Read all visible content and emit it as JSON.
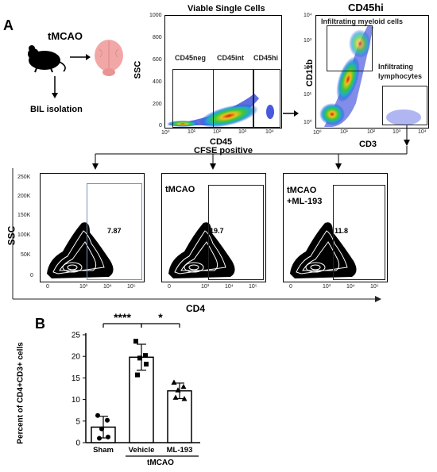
{
  "panelA": {
    "letter": "A",
    "mouse_label": "tMCAO",
    "isolation_label": "BIL isolation",
    "viable": {
      "title": "Viable Single Cells",
      "ylabel": "SSC",
      "xlabel": "CD45",
      "yticks": [
        "1000",
        "800",
        "600",
        "400",
        "200",
        "0"
      ],
      "xticks": [
        "10⁰",
        "10¹",
        "10²",
        "10³",
        "10⁴"
      ],
      "gates": [
        "CD45neg",
        "CD45int",
        "CD45hi"
      ]
    },
    "cd45hi": {
      "title": "CD45hi",
      "ylabel": "CD11b",
      "xlabel": "CD3",
      "yticks": [
        "10⁴",
        "10³",
        "10²",
        "10¹",
        "10⁰"
      ],
      "xticks": [
        "10⁰",
        "10¹",
        "10²",
        "10³",
        "10⁴"
      ],
      "gate_myeloid": "Infiltrating myeloid cells",
      "gate_lymph": "Infiltrating lymphocytes"
    },
    "cfse_label": "CFSE positive",
    "ssc_label": "SSC",
    "cd4_label": "CD4",
    "cd4_plots": {
      "yticks": [
        "250K",
        "200K",
        "150K",
        "100K",
        "50K",
        "0"
      ],
      "xticks": [
        "0",
        "10³",
        "10⁴",
        "10⁵"
      ],
      "panels": [
        {
          "label": "",
          "value": "7.87"
        },
        {
          "label": "tMCAO",
          "value": "19.7"
        },
        {
          "label": "tMCAO\n+ML-193",
          "value": "11.8"
        }
      ]
    }
  },
  "chart_data": {
    "type": "bar",
    "title": "",
    "ylabel": "Percent of CD4+CD3+ cells",
    "xlabel": "tMCAO",
    "ylim": [
      0,
      25
    ],
    "yticks": [
      "0",
      "5",
      "10",
      "15",
      "20",
      "25"
    ],
    "categories": [
      "Sham",
      "Vehicle",
      "ML-193"
    ],
    "values": [
      3.6,
      19.8,
      12.0
    ],
    "errors": [
      2.5,
      3.0,
      1.8
    ],
    "points": [
      [
        6.3,
        5.2,
        3.2,
        1.3,
        1.0
      ],
      [
        23.5,
        20.2,
        19.6,
        18.2,
        15.7
      ],
      [
        14.0,
        13.0,
        12.2,
        10.2,
        10.5
      ]
    ],
    "significance": [
      {
        "from": 0,
        "to": 1,
        "label": "****"
      },
      {
        "from": 1,
        "to": 2,
        "label": "*"
      }
    ],
    "grid": false,
    "letter": "B"
  }
}
